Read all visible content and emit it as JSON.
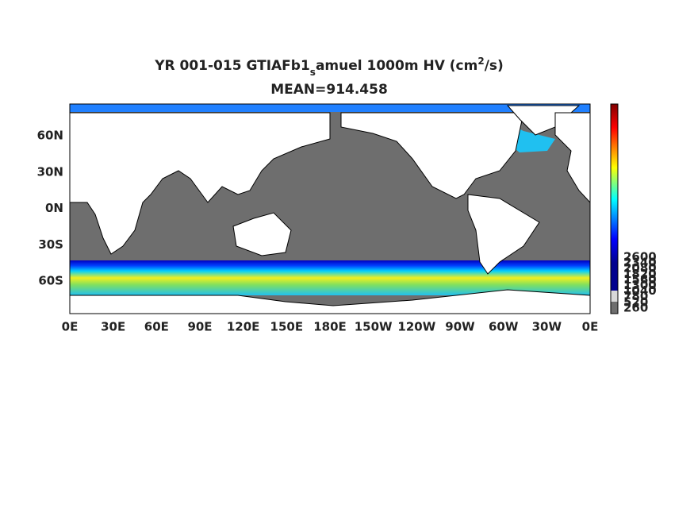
{
  "title": {
    "part1": "YR 001-015 GTIAFb1",
    "sub": "s",
    "part2": "amuel 1000m HV (cm",
    "sup": "2",
    "part3": "/s)"
  },
  "subtitle": "MEAN=914.458",
  "lat_labels": [
    "60N",
    "30N",
    "0N",
    "30S",
    "60S"
  ],
  "lon_labels": [
    "0E",
    "30E",
    "60E",
    "90E",
    "120E",
    "150E",
    "180E",
    "150W",
    "120W",
    "90W",
    "60W",
    "30W",
    "0E"
  ],
  "colorbar_labels": [
    "2600",
    "2340",
    "2080",
    "1820",
    "1560",
    "1300",
    "1040",
    "780",
    "520",
    "260"
  ]
}
